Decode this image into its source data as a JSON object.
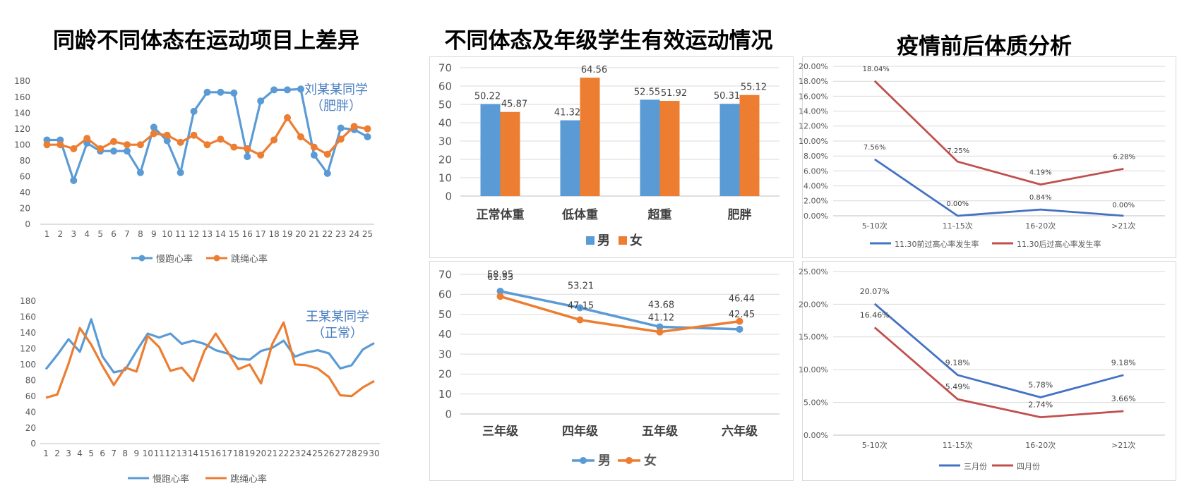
{
  "titles": {
    "left": "同龄不同体态在运动项目上差异",
    "middle": "不同体态及年级学生有效运动情况",
    "right": "疫情前后体质分析"
  },
  "colors": {
    "blue": "#5B9BD5",
    "orange": "#ED7D31",
    "dblue": "#4472C4",
    "red": "#C0504D",
    "axis": "#595959",
    "grid": "#d9d9d9"
  },
  "chart_data": [
    {
      "id": "liu",
      "type": "line",
      "annotation": "刘某某同学\n（肥胖）",
      "x": [
        1,
        2,
        3,
        4,
        5,
        6,
        7,
        8,
        9,
        10,
        11,
        12,
        13,
        14,
        15,
        16,
        17,
        18,
        19,
        20,
        21,
        22,
        23,
        24,
        25
      ],
      "ylim": [
        0,
        180
      ],
      "yticks": [
        0,
        20,
        40,
        60,
        80,
        100,
        120,
        140,
        160,
        180
      ],
      "markers": true,
      "series": [
        {
          "name": "慢跑心率",
          "color": "#5B9BD5",
          "values": [
            106,
            106,
            55,
            102,
            92,
            92,
            92,
            65,
            122,
            105,
            65,
            142,
            166,
            166,
            165,
            85,
            155,
            169,
            169,
            170,
            87,
            64,
            121,
            119,
            110
          ]
        },
        {
          "name": "跳绳心率",
          "color": "#ED7D31",
          "values": [
            100,
            100,
            95,
            108,
            95,
            104,
            100,
            100,
            114,
            112,
            103,
            112,
            100,
            107,
            97,
            95,
            87,
            106,
            134,
            110,
            97,
            88,
            107,
            123,
            120
          ]
        }
      ]
    },
    {
      "id": "wang",
      "type": "line",
      "annotation": "王某某同学\n（正常）",
      "x": [
        1,
        2,
        3,
        4,
        5,
        6,
        7,
        8,
        9,
        10,
        11,
        12,
        13,
        14,
        15,
        16,
        17,
        18,
        19,
        20,
        21,
        22,
        23,
        24,
        25,
        26,
        27,
        28,
        29,
        30
      ],
      "ylim": [
        0,
        180
      ],
      "yticks": [
        0,
        20,
        40,
        60,
        80,
        100,
        120,
        140,
        160,
        180
      ],
      "markers": false,
      "series": [
        {
          "name": "慢跑心率",
          "color": "#5B9BD5",
          "values": [
            94,
            112,
            132,
            116,
            157,
            110,
            90,
            93,
            117,
            139,
            134,
            139,
            126,
            130,
            126,
            118,
            114,
            107,
            106,
            117,
            121,
            130,
            110,
            115,
            118,
            114,
            95,
            99,
            119,
            127
          ]
        },
        {
          "name": "跳绳心率",
          "color": "#ED7D31",
          "values": [
            58,
            62,
            101,
            146,
            125,
            98,
            74,
            96,
            91,
            136,
            122,
            92,
            96,
            79,
            117,
            139,
            117,
            94,
            100,
            76,
            126,
            153,
            100,
            99,
            95,
            84,
            61,
            60,
            71,
            79
          ]
        }
      ]
    },
    {
      "id": "bars",
      "type": "bar",
      "categories": [
        "正常体重",
        "低体重",
        "超重",
        "肥胖"
      ],
      "ylim": [
        0,
        70
      ],
      "yticks": [
        0,
        10,
        20,
        30,
        40,
        50,
        60,
        70
      ],
      "series": [
        {
          "name": "男",
          "color": "#5B9BD5",
          "values": [
            50.22,
            41.32,
            52.55,
            50.31
          ],
          "labels": [
            "50.22",
            "41.32",
            "52.55",
            "50.31"
          ]
        },
        {
          "name": "女",
          "color": "#ED7D31",
          "values": [
            45.87,
            64.56,
            51.92,
            55.12
          ],
          "labels": [
            "45.87",
            "64.56",
            "51.92",
            "55.12"
          ]
        }
      ]
    },
    {
      "id": "grades",
      "type": "line",
      "categories": [
        "三年级",
        "四年级",
        "五年级",
        "六年级"
      ],
      "ylim": [
        0,
        70
      ],
      "yticks": [
        0,
        10,
        20,
        30,
        40,
        50,
        60,
        70
      ],
      "markers": true,
      "series": [
        {
          "name": "男",
          "color": "#5B9BD5",
          "values": [
            61.53,
            53.21,
            43.68,
            42.45
          ],
          "labels": [
            "61.53",
            "53.21",
            "43.68",
            "42.45"
          ]
        },
        {
          "name": "女",
          "color": "#ED7D31",
          "values": [
            58.95,
            47.15,
            41.12,
            46.44
          ],
          "labels": [
            "58.95",
            "47.15",
            "41.12",
            "46.44"
          ]
        }
      ]
    },
    {
      "id": "rate1",
      "type": "line",
      "categories": [
        "5-10次",
        "11-15次",
        "16-20次",
        ">21次"
      ],
      "ylim": [
        0,
        20
      ],
      "yticks": [
        0,
        2,
        4,
        6,
        8,
        10,
        12,
        14,
        16,
        18,
        20
      ],
      "ytick_labels": [
        "0.00%",
        "2.00%",
        "4.00%",
        "6.00%",
        "8.00%",
        "10.00%",
        "12.00%",
        "14.00%",
        "16.00%",
        "18.00%",
        "20.00%"
      ],
      "markers": false,
      "series": [
        {
          "name": "11.30前过高心率发生率",
          "color": "#4472C4",
          "values": [
            7.56,
            0.0,
            0.84,
            0.0
          ],
          "labels": [
            "7.56%",
            "0.00%",
            "0.84%",
            "0.00%"
          ]
        },
        {
          "name": "11.30后过高心率发生率",
          "color": "#C0504D",
          "values": [
            18.04,
            7.25,
            4.19,
            6.28
          ],
          "labels": [
            "18.04%",
            "7.25%",
            "4.19%",
            "6.28%"
          ]
        }
      ]
    },
    {
      "id": "rate2",
      "type": "line",
      "categories": [
        "5-10次",
        "11-15次",
        "16-20次",
        ">21次"
      ],
      "ylim": [
        0,
        25
      ],
      "yticks": [
        0,
        5,
        10,
        15,
        20,
        25
      ],
      "ytick_labels": [
        "0.00%",
        "5.00%",
        "10.00%",
        "15.00%",
        "20.00%",
        "25.00%"
      ],
      "markers": false,
      "series": [
        {
          "name": "三月份",
          "color": "#4472C4",
          "values": [
            20.07,
            9.18,
            5.78,
            9.18
          ],
          "labels": [
            "20.07%",
            "9.18%",
            "5.78%",
            "9.18%"
          ]
        },
        {
          "name": "四月份",
          "color": "#C0504D",
          "values": [
            16.46,
            5.49,
            2.74,
            3.66
          ],
          "labels": [
            "16.46%",
            "5.49%",
            "2.74%",
            "3.66%"
          ]
        }
      ]
    }
  ]
}
